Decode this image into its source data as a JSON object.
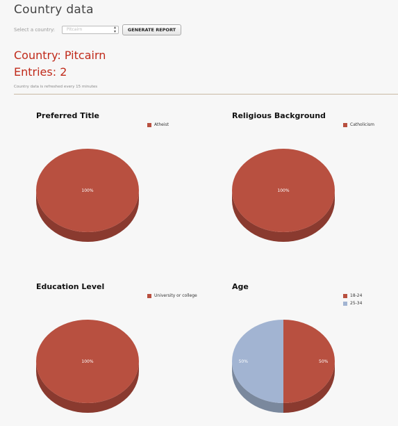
{
  "header": {
    "title": "Country data"
  },
  "controls": {
    "select_label": "Select a country:",
    "selected_country": "Pitcairn",
    "generate_label": "GENERATE REPORT"
  },
  "report": {
    "country_label": "Country: Pitcairn",
    "entries_label": "Entries: 2",
    "refresh_note": "Country data is refreshed every 15 minutes"
  },
  "colors": {
    "red": "#b85040",
    "red_side": "#8a3a2f",
    "blue": "#a2b4d2",
    "blue_side": "#7a889d"
  },
  "chart_data": [
    {
      "type": "pie",
      "title": "Preferred Title",
      "slices": [
        {
          "label": "Atheist",
          "value": 100,
          "color": "#b85040",
          "value_label": "100%"
        }
      ],
      "legend_position": "top-right"
    },
    {
      "type": "pie",
      "title": "Religious Background",
      "slices": [
        {
          "label": "Catholicism",
          "value": 100,
          "color": "#b85040",
          "value_label": "100%"
        }
      ],
      "legend_position": "top-right"
    },
    {
      "type": "pie",
      "title": "Education Level",
      "slices": [
        {
          "label": "University or college",
          "value": 100,
          "color": "#b85040",
          "value_label": "100%"
        }
      ],
      "legend_position": "top-right"
    },
    {
      "type": "pie",
      "title": "Age",
      "slices": [
        {
          "label": "18-24",
          "value": 50,
          "color": "#b85040",
          "value_label": "50%"
        },
        {
          "label": "25-34",
          "value": 50,
          "color": "#a2b4d2",
          "value_label": "50%"
        }
      ],
      "legend_position": "top-right"
    }
  ]
}
